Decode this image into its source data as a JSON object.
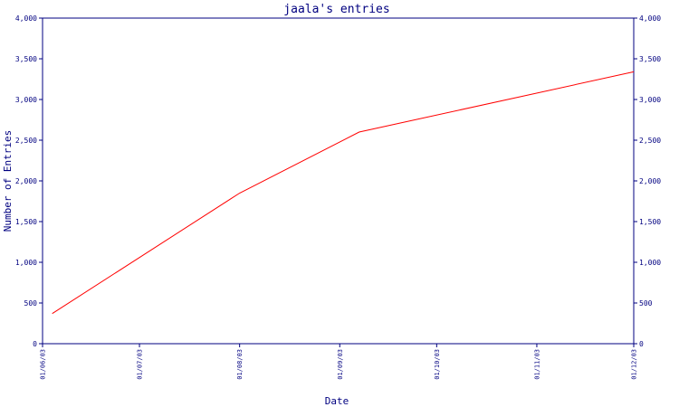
{
  "chart_data": {
    "type": "line",
    "title": "jaala's entries",
    "xlabel": "Date",
    "ylabel": "Number of Entries",
    "x_ticks": [
      "01/06/03",
      "01/07/03",
      "01/08/03",
      "01/09/03",
      "01/10/03",
      "01/11/03",
      "01/12/03"
    ],
    "y_ticks": [
      "0",
      "500",
      "1,000",
      "1,500",
      "2,000",
      "2,500",
      "3,000",
      "3,500",
      "4,000"
    ],
    "ylim": [
      0,
      4000
    ],
    "xlim": [
      "2003-06-01",
      "2003-12-01"
    ],
    "grid": false,
    "series": [
      {
        "color": "#ff0000",
        "x": [
          "2003-06-04",
          "2003-08-01",
          "2003-09-07",
          "2003-12-01"
        ],
        "y": [
          370,
          1850,
          2600,
          3340
        ]
      }
    ]
  },
  "colors": {
    "axis": "#000080",
    "line": "#ff0000",
    "background": "#ffffff"
  }
}
